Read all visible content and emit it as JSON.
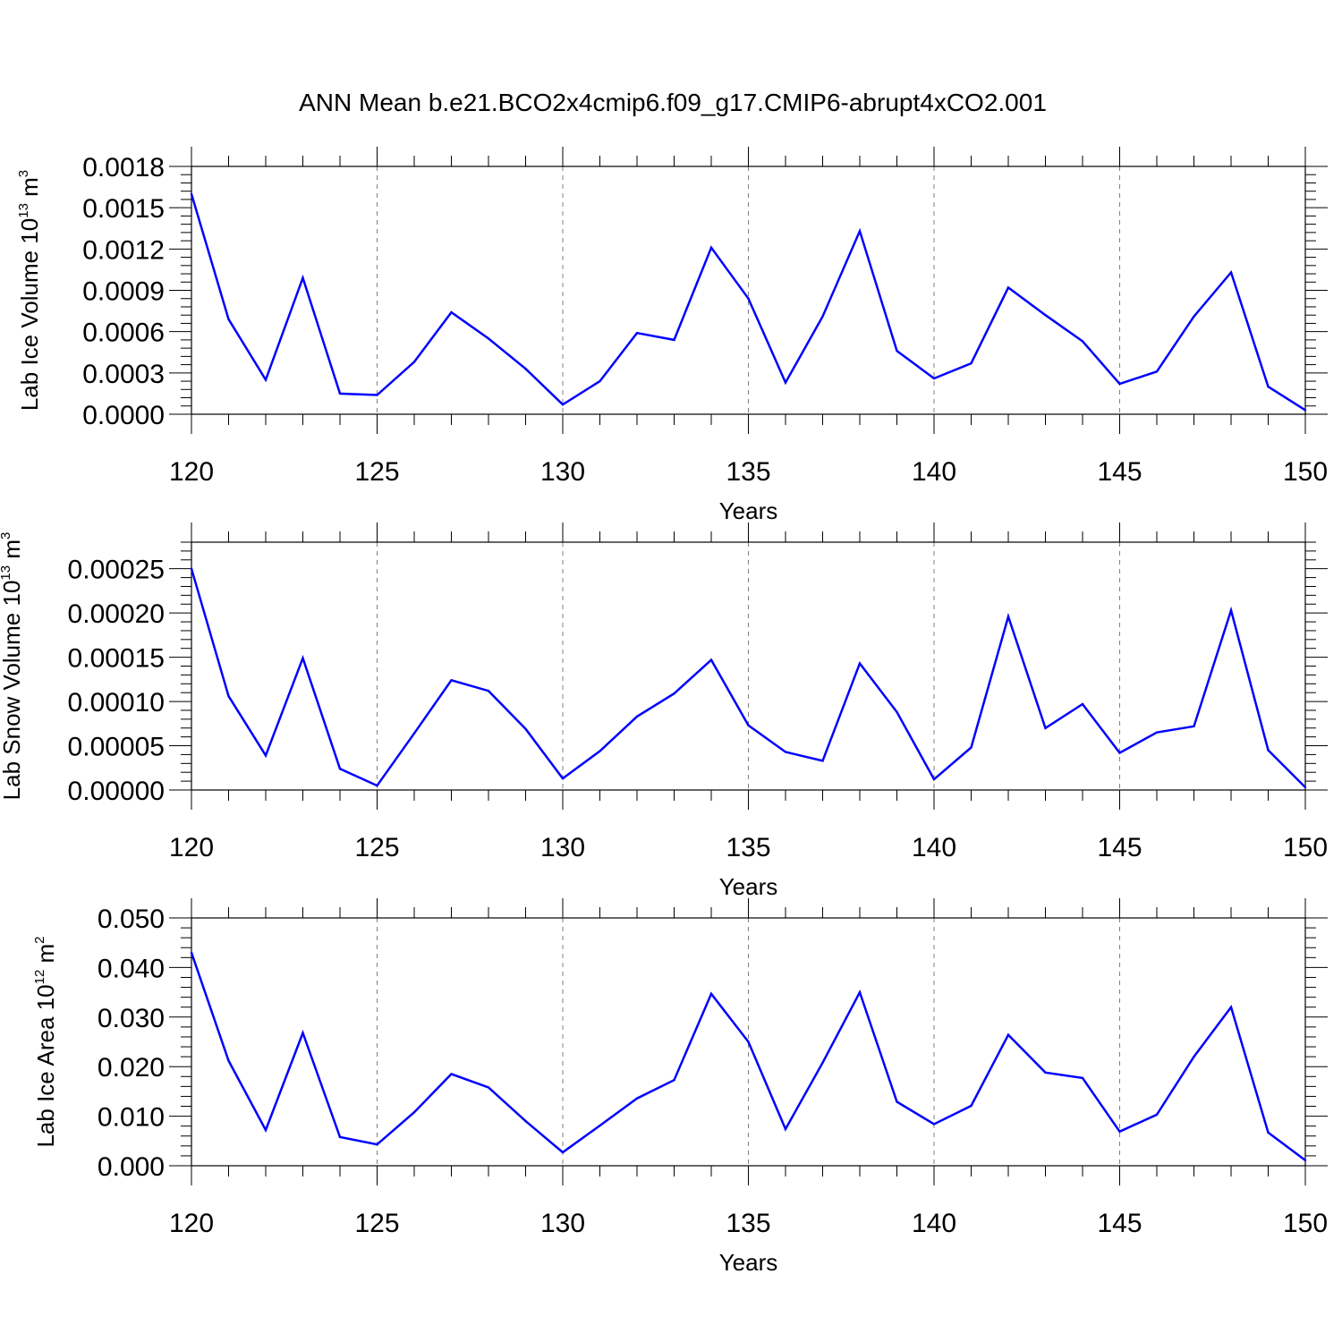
{
  "figure_title": "ANN Mean b.e21.BCO2x4cmip6.f09_g17.CMIP6-abrupt4xCO2.001",
  "line_color": "#0000ff",
  "grid_color": "#808080",
  "chart_data": [
    {
      "type": "line",
      "title": "ANN Mean b.e21.BCO2x4cmip6.f09_g17.CMIP6-abrupt4xCO2.001",
      "xlabel": "Years",
      "ylabel_base": "Lab Ice Volume 10",
      "ylabel_exp": "13",
      "ylabel_unit": " m",
      "ylabel_unit_exp": "3",
      "xlim": [
        120,
        150
      ],
      "ylim": [
        0,
        0.0018
      ],
      "xticks": [
        120,
        125,
        130,
        135,
        140,
        145,
        150
      ],
      "xtick_labels": [
        "120",
        "125",
        "130",
        "135",
        "140",
        "145",
        "150"
      ],
      "yticks": [
        0,
        0.0003,
        0.0006,
        0.0009,
        0.0012,
        0.0015,
        0.0018
      ],
      "ytick_labels": [
        "0.0000",
        "0.0003",
        "0.0006",
        "0.0009",
        "0.0012",
        "0.0015",
        "0.0018"
      ],
      "grid": "vertical dashed at major x ticks",
      "x": [
        120,
        121,
        122,
        123,
        124,
        125,
        126,
        127,
        128,
        129,
        130,
        131,
        132,
        133,
        134,
        135,
        136,
        137,
        138,
        139,
        140,
        141,
        142,
        143,
        144,
        145,
        146,
        147,
        148,
        149,
        150
      ],
      "values": [
        0.0016,
        0.00069,
        0.00025,
        0.00099,
        0.00015,
        0.00014,
        0.00038,
        0.00074,
        0.00055,
        0.00033,
        7e-05,
        0.00024,
        0.00059,
        0.00054,
        0.00121,
        0.00084,
        0.00023,
        0.00071,
        0.00133,
        0.00046,
        0.00026,
        0.00037,
        0.00092,
        0.00072,
        0.00053,
        0.00022,
        0.00031,
        0.00071,
        0.00103,
        0.0002,
        3e-05
      ]
    },
    {
      "type": "line",
      "xlabel": "Years",
      "ylabel_base": "Lab Snow Volume 10",
      "ylabel_exp": "13",
      "ylabel_unit": " m",
      "ylabel_unit_exp": "3",
      "xlim": [
        120,
        150
      ],
      "ylim": [
        0,
        0.00028
      ],
      "xticks": [
        120,
        125,
        130,
        135,
        140,
        145,
        150
      ],
      "xtick_labels": [
        "120",
        "125",
        "130",
        "135",
        "140",
        "145",
        "150"
      ],
      "yticks": [
        0,
        5e-05,
        0.0001,
        0.00015,
        0.0002,
        0.00025
      ],
      "ytick_labels": [
        "0.00000",
        "0.00005",
        "0.00010",
        "0.00015",
        "0.00020",
        "0.00025"
      ],
      "grid": "vertical dashed at major x ticks",
      "x": [
        120,
        121,
        122,
        123,
        124,
        125,
        126,
        127,
        128,
        129,
        130,
        131,
        132,
        133,
        134,
        135,
        136,
        137,
        138,
        139,
        140,
        141,
        142,
        143,
        144,
        145,
        146,
        147,
        148,
        149,
        150
      ],
      "values": [
        0.00025,
        0.000106,
        3.9e-05,
        0.000149,
        2.4e-05,
        5e-06,
        6.4e-05,
        0.000124,
        0.000112,
        6.9e-05,
        1.3e-05,
        4.4e-05,
        8.3e-05,
        0.000109,
        0.000147,
        7.3e-05,
        4.3e-05,
        3.3e-05,
        0.000143,
        8.8e-05,
        1.2e-05,
        4.8e-05,
        0.000196,
        7e-05,
        9.7e-05,
        4.2e-05,
        6.5e-05,
        7.2e-05,
        0.000203,
        4.5e-05,
        3e-06
      ]
    },
    {
      "type": "line",
      "xlabel": "Years",
      "ylabel_base": "Lab Ice Area 10",
      "ylabel_exp": "12",
      "ylabel_unit": " m",
      "ylabel_unit_exp": "2",
      "xlim": [
        120,
        150
      ],
      "ylim": [
        0,
        0.05
      ],
      "xticks": [
        120,
        125,
        130,
        135,
        140,
        145,
        150
      ],
      "xtick_labels": [
        "120",
        "125",
        "130",
        "135",
        "140",
        "145",
        "150"
      ],
      "yticks": [
        0,
        0.01,
        0.02,
        0.03,
        0.04,
        0.05
      ],
      "ytick_labels": [
        "0.000",
        "0.010",
        "0.020",
        "0.030",
        "0.040",
        "0.050"
      ],
      "grid": "vertical dashed at major x ticks",
      "x": [
        120,
        121,
        122,
        123,
        124,
        125,
        126,
        127,
        128,
        129,
        130,
        131,
        132,
        133,
        134,
        135,
        136,
        137,
        138,
        139,
        140,
        141,
        142,
        143,
        144,
        145,
        146,
        147,
        148,
        149,
        150
      ],
      "values": [
        0.043,
        0.0212,
        0.0072,
        0.0268,
        0.0058,
        0.0043,
        0.0108,
        0.0185,
        0.0158,
        0.009,
        0.0027,
        0.0081,
        0.0136,
        0.0173,
        0.0347,
        0.025,
        0.0074,
        0.0208,
        0.035,
        0.0129,
        0.0084,
        0.0121,
        0.0264,
        0.0188,
        0.0177,
        0.0069,
        0.0103,
        0.022,
        0.032,
        0.0067,
        0.0011
      ]
    }
  ]
}
